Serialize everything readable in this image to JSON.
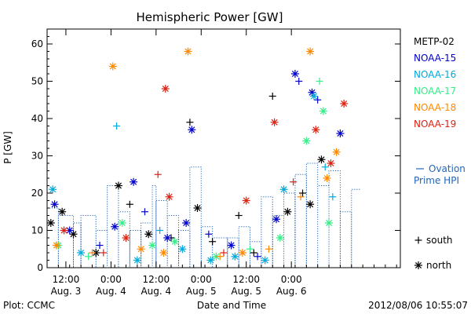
{
  "chart_data": {
    "type": "scatter",
    "title": "Hemispheric Power [GW]",
    "ylabel": "P [GW]",
    "xlabel": "Date and Time",
    "ylim": [
      0,
      64
    ],
    "yticks": [
      0,
      10,
      20,
      30,
      40,
      50,
      60
    ],
    "xlim": [
      "2012-08-03 07:00",
      "2012-08-07 05:00"
    ],
    "xticks": [
      {
        "t": "2012-08-03 12:00",
        "line1": "12:00",
        "line2": "Aug. 3"
      },
      {
        "t": "2012-08-04 00:00",
        "line1": "0:00",
        "line2": "Aug. 4"
      },
      {
        "t": "2012-08-04 12:00",
        "line1": "12:00",
        "line2": "Aug. 4"
      },
      {
        "t": "2012-08-05 00:00",
        "line1": "0:00",
        "line2": "Aug. 5"
      },
      {
        "t": "2012-08-05 12:00",
        "line1": "12:00",
        "line2": "Aug. 5"
      },
      {
        "t": "2012-08-06 00:00",
        "line1": "0:00",
        "line2": "Aug. 6"
      }
    ],
    "legend_placement": "right",
    "series": [
      {
        "name": "METP-02",
        "color": "#000000",
        "points": [
          [
            "2012-08-03 08:00",
            12,
            "north"
          ],
          [
            "2012-08-03 11:00",
            15,
            "north"
          ],
          [
            "2012-08-03 14:00",
            9,
            "north"
          ],
          [
            "2012-08-03 20:00",
            4,
            "north"
          ],
          [
            "2012-08-04 02:00",
            22,
            "north"
          ],
          [
            "2012-08-04 05:00",
            17,
            "plus"
          ],
          [
            "2012-08-04 10:00",
            9,
            "north"
          ],
          [
            "2012-08-04 16:00",
            8,
            "plus"
          ],
          [
            "2012-08-04 21:00",
            39,
            "plus"
          ],
          [
            "2012-08-04 23:00",
            16,
            "north"
          ],
          [
            "2012-08-05 03:00",
            7,
            "plus"
          ],
          [
            "2012-08-05 10:00",
            14,
            "plus"
          ],
          [
            "2012-08-05 14:00",
            4,
            "plus"
          ],
          [
            "2012-08-05 19:00",
            46,
            "plus"
          ],
          [
            "2012-08-05 23:00",
            15,
            "north"
          ],
          [
            "2012-08-06 03:00",
            20,
            "plus"
          ],
          [
            "2012-08-06 05:00",
            17,
            "north"
          ],
          [
            "2012-08-06 08:00",
            29,
            "north"
          ]
        ]
      },
      {
        "name": "NOAA-15",
        "color": "#0000cc",
        "points": [
          [
            "2012-08-03 09:00",
            17,
            "north"
          ],
          [
            "2012-08-03 13:00",
            10,
            "north"
          ],
          [
            "2012-08-03 21:00",
            6,
            "plus"
          ],
          [
            "2012-08-04 01:00",
            11,
            "north"
          ],
          [
            "2012-08-04 06:00",
            23,
            "north"
          ],
          [
            "2012-08-04 09:00",
            15,
            "plus"
          ],
          [
            "2012-08-04 15:00",
            8,
            "north"
          ],
          [
            "2012-08-04 20:00",
            12,
            "north"
          ],
          [
            "2012-08-04 21:30",
            37,
            "north"
          ],
          [
            "2012-08-05 02:00",
            9,
            "plus"
          ],
          [
            "2012-08-05 08:00",
            6,
            "north"
          ],
          [
            "2012-08-05 15:00",
            3,
            "plus"
          ],
          [
            "2012-08-05 20:00",
            13,
            "north"
          ],
          [
            "2012-08-06 01:00",
            52,
            "north"
          ],
          [
            "2012-08-06 02:00",
            50,
            "plus"
          ],
          [
            "2012-08-06 05:30",
            47,
            "north"
          ],
          [
            "2012-08-06 07:00",
            45,
            "plus"
          ],
          [
            "2012-08-06 13:00",
            36,
            "north"
          ]
        ]
      },
      {
        "name": "NOAA-16",
        "color": "#00aadd",
        "points": [
          [
            "2012-08-03 08:30",
            21,
            "north"
          ],
          [
            "2012-08-03 16:00",
            4,
            "north"
          ],
          [
            "2012-08-04 01:30",
            38,
            "plus"
          ],
          [
            "2012-08-04 07:00",
            2,
            "north"
          ],
          [
            "2012-08-04 13:00",
            10,
            "plus"
          ],
          [
            "2012-08-04 19:00",
            5,
            "north"
          ],
          [
            "2012-08-05 02:30",
            2,
            "north"
          ],
          [
            "2012-08-05 09:00",
            3,
            "north"
          ],
          [
            "2012-08-05 17:00",
            2,
            "north"
          ],
          [
            "2012-08-05 22:00",
            21,
            "north"
          ],
          [
            "2012-08-06 06:00",
            46,
            "north"
          ],
          [
            "2012-08-06 09:00",
            27,
            "plus"
          ],
          [
            "2012-08-06 11:00",
            19,
            "plus"
          ]
        ]
      },
      {
        "name": "NOAA-17",
        "color": "#33ee88",
        "points": [
          [
            "2012-08-03 10:00",
            6,
            "north"
          ],
          [
            "2012-08-03 18:00",
            3,
            "plus"
          ],
          [
            "2012-08-04 03:00",
            12,
            "north"
          ],
          [
            "2012-08-04 11:00",
            6,
            "north"
          ],
          [
            "2012-08-04 17:00",
            7,
            "north"
          ],
          [
            "2012-08-05 04:00",
            3,
            "north"
          ],
          [
            "2012-08-05 13:00",
            5,
            "plus"
          ],
          [
            "2012-08-05 21:00",
            8,
            "north"
          ],
          [
            "2012-08-06 04:00",
            34,
            "north"
          ],
          [
            "2012-08-06 07:30",
            50,
            "plus"
          ],
          [
            "2012-08-06 08:30",
            42,
            "north"
          ],
          [
            "2012-08-06 10:00",
            12,
            "north"
          ]
        ]
      },
      {
        "name": "NOAA-18",
        "color": "#ff8800",
        "points": [
          [
            "2012-08-03 09:30",
            6,
            "north"
          ],
          [
            "2012-08-03 19:00",
            4,
            "plus"
          ],
          [
            "2012-08-04 00:30",
            54,
            "north"
          ],
          [
            "2012-08-04 08:00",
            5,
            "north"
          ],
          [
            "2012-08-04 14:00",
            4,
            "north"
          ],
          [
            "2012-08-04 20:30",
            58,
            "north"
          ],
          [
            "2012-08-05 05:00",
            3,
            "plus"
          ],
          [
            "2012-08-05 11:00",
            4,
            "north"
          ],
          [
            "2012-08-05 18:00",
            5,
            "plus"
          ],
          [
            "2012-08-06 02:30",
            19,
            "plus"
          ],
          [
            "2012-08-06 05:00",
            58,
            "north"
          ],
          [
            "2012-08-06 09:30",
            24,
            "north"
          ],
          [
            "2012-08-06 12:00",
            31,
            "north"
          ]
        ]
      },
      {
        "name": "NOAA-19",
        "color": "#dd2211",
        "points": [
          [
            "2012-08-03 11:30",
            10,
            "north"
          ],
          [
            "2012-08-03 22:00",
            4,
            "plus"
          ],
          [
            "2012-08-04 04:00",
            8,
            "north"
          ],
          [
            "2012-08-04 12:30",
            25,
            "plus"
          ],
          [
            "2012-08-04 14:30",
            48,
            "north"
          ],
          [
            "2012-08-04 15:30",
            19,
            "north"
          ],
          [
            "2012-08-05 06:00",
            4,
            "plus"
          ],
          [
            "2012-08-05 12:00",
            18,
            "north"
          ],
          [
            "2012-08-05 19:30",
            39,
            "north"
          ],
          [
            "2012-08-06 00:30",
            23,
            "plus"
          ],
          [
            "2012-08-06 06:30",
            37,
            "north"
          ],
          [
            "2012-08-06 10:30",
            28,
            "north"
          ],
          [
            "2012-08-06 14:00",
            44,
            "north"
          ]
        ]
      }
    ],
    "ovation": {
      "name": "Ovation Prime HPI",
      "label_line1": "Ovation",
      "label_line2": "Prime HPI",
      "color": "#2266bb",
      "points": [
        [
          "2012-08-03 07:00",
          16
        ],
        [
          "2012-08-03 10:00",
          14
        ],
        [
          "2012-08-03 14:00",
          12
        ],
        [
          "2012-08-03 16:00",
          14
        ],
        [
          "2012-08-03 20:00",
          10
        ],
        [
          "2012-08-03 23:00",
          22
        ],
        [
          "2012-08-04 02:00",
          15
        ],
        [
          "2012-08-04 05:00",
          10
        ],
        [
          "2012-08-04 08:00",
          12
        ],
        [
          "2012-08-04 11:00",
          22
        ],
        [
          "2012-08-04 12:00",
          18
        ],
        [
          "2012-08-04 15:00",
          14
        ],
        [
          "2012-08-04 18:00",
          10
        ],
        [
          "2012-08-04 21:00",
          27
        ],
        [
          "2012-08-05 00:00",
          11
        ],
        [
          "2012-08-05 03:00",
          8
        ],
        [
          "2012-08-05 07:00",
          8
        ],
        [
          "2012-08-05 10:00",
          11
        ],
        [
          "2012-08-05 13:00",
          7
        ],
        [
          "2012-08-05 16:00",
          19
        ],
        [
          "2012-08-05 19:00",
          14
        ],
        [
          "2012-08-05 22:00",
          20
        ],
        [
          "2012-08-06 01:00",
          25
        ],
        [
          "2012-08-06 04:00",
          28
        ],
        [
          "2012-08-06 07:00",
          22
        ],
        [
          "2012-08-06 10:00",
          26
        ],
        [
          "2012-08-06 13:00",
          15
        ],
        [
          "2012-08-06 16:00",
          21
        ]
      ]
    },
    "marker_legend": [
      {
        "symbol": "+",
        "label": "south"
      },
      {
        "symbol": "*",
        "label": "north"
      }
    ]
  },
  "footer": {
    "plot_credit": "Plot: CCMC",
    "timestamp": "2012/08/06 10:55:07"
  }
}
